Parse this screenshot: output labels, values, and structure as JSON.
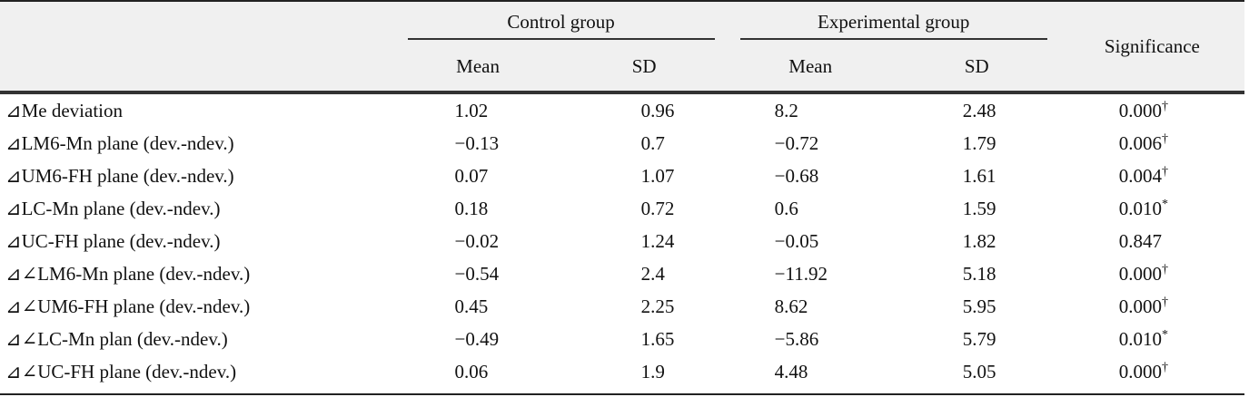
{
  "header": {
    "control_group": "Control group",
    "experimental_group": "Experimental group",
    "significance": "Significance",
    "sub": [
      "Mean",
      "SD",
      "Mean",
      "SD"
    ]
  },
  "rows": [
    {
      "label": "⊿Me deviation",
      "c_mean": "1.02",
      "c_sd": "0.96",
      "e_mean": "8.2",
      "e_sd": "2.48",
      "sig": "0.000",
      "mark": "†"
    },
    {
      "label": "⊿LM6-Mn plane (dev.-ndev.)",
      "c_mean": "−0.13",
      "c_sd": "0.7",
      "e_mean": "−0.72",
      "e_sd": "1.79",
      "sig": "0.006",
      "mark": "†"
    },
    {
      "label": "⊿UM6-FH plane (dev.-ndev.)",
      "c_mean": "0.07",
      "c_sd": "1.07",
      "e_mean": "−0.68",
      "e_sd": "1.61",
      "sig": "0.004",
      "mark": "†"
    },
    {
      "label": "⊿LC-Mn plane (dev.-ndev.)",
      "c_mean": "0.18",
      "c_sd": "0.72",
      "e_mean": "0.6",
      "e_sd": "1.59",
      "sig": "0.010",
      "mark": "*"
    },
    {
      "label": "⊿UC-FH plane (dev.-ndev.)",
      "c_mean": "−0.02",
      "c_sd": "1.24",
      "e_mean": "−0.05",
      "e_sd": "1.82",
      "sig": "0.847",
      "mark": ""
    },
    {
      "label": "⊿∠LM6-Mn plane (dev.-ndev.)",
      "c_mean": "−0.54",
      "c_sd": "2.4",
      "e_mean": "−11.92",
      "e_sd": "5.18",
      "sig": "0.000",
      "mark": "†"
    },
    {
      "label": "⊿∠UM6-FH plane (dev.-ndev.)",
      "c_mean": "0.45",
      "c_sd": "2.25",
      "e_mean": "8.62",
      "e_sd": "5.95",
      "sig": "0.000",
      "mark": "†"
    },
    {
      "label": "⊿∠LC-Mn plan (dev.-ndev.)",
      "c_mean": "−0.49",
      "c_sd": "1.65",
      "e_mean": "−5.86",
      "e_sd": "5.79",
      "sig": "0.010",
      "mark": "*"
    },
    {
      "label": "⊿∠UC-FH plane (dev.-ndev.)",
      "c_mean": "0.06",
      "c_sd": "1.9",
      "e_mean": "4.48",
      "e_sd": "5.05",
      "sig": "0.000",
      "mark": "†"
    }
  ]
}
